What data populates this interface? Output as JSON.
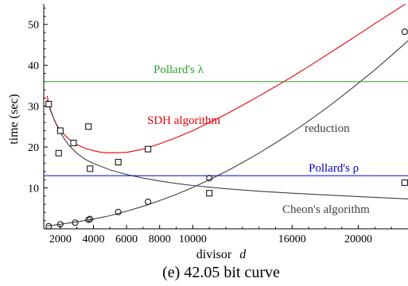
{
  "caption": "(e) 42.05 bit curve",
  "chart_data": {
    "type": "line",
    "xlabel": "divisor",
    "xlabel_var": "d",
    "ylabel": "time (sec)",
    "xlim": [
      1000,
      23000
    ],
    "ylim": [
      0,
      55
    ],
    "grid": false,
    "x_ticks": [
      2000,
      4000,
      6000,
      8000,
      10000,
      16000,
      20000
    ],
    "y_ticks": [
      10,
      20,
      30,
      40,
      50
    ],
    "series": [
      {
        "name": "SDH algorithm",
        "kind": "fitted-curve",
        "color": "#e8000b",
        "x": [
          1200,
          1400,
          1700,
          2000,
          2500,
          3000,
          3500,
          4000,
          4500,
          5000,
          5500,
          6000,
          7000,
          8000,
          9000,
          10000,
          11000,
          12000,
          13000,
          14000,
          15000,
          16000,
          17000,
          18000,
          19000,
          20000,
          21000,
          22000,
          23000
        ],
        "y": [
          32.5,
          29,
          26,
          24,
          22,
          20.6,
          19.7,
          19.1,
          18.7,
          18.6,
          18.6,
          18.7,
          19.5,
          20.8,
          22.3,
          24,
          26,
          28,
          30.2,
          32.5,
          34.8,
          37.2,
          39.7,
          42.3,
          44.9,
          47.5,
          50.2,
          52.8,
          55.4
        ]
      },
      {
        "name": "reduction",
        "kind": "fitted-curve",
        "color": "#404040",
        "x": [
          1200,
          2000,
          3000,
          4000,
          5000,
          6000,
          7000,
          8000,
          9000,
          10000,
          11000,
          12000,
          13000,
          14000,
          15000,
          16000,
          17000,
          18000,
          19000,
          20000,
          21000,
          22000,
          23000
        ],
        "y": [
          0.7,
          1.1,
          1.7,
          2.4,
          3.2,
          4.3,
          5.5,
          6.9,
          8.4,
          10.1,
          12,
          14,
          16.2,
          18.5,
          21,
          23.6,
          26.4,
          29.3,
          32.4,
          35.6,
          38.9,
          42.4,
          46
        ]
      },
      {
        "name": "Cheon's algorithm",
        "kind": "fitted-curve",
        "color": "#404040",
        "x": [
          1200,
          1600,
          2000,
          2500,
          3000,
          3500,
          4000,
          5000,
          6000,
          7000,
          8000,
          9000,
          10000,
          12000,
          14000,
          16000,
          18000,
          20000,
          22000,
          23000
        ],
        "y": [
          31.5,
          27,
          23.5,
          20.5,
          18.5,
          17,
          16,
          14.4,
          13.3,
          12.4,
          11.7,
          11.1,
          10.6,
          9.8,
          9.2,
          8.7,
          8.3,
          7.9,
          7.5,
          7.3
        ]
      },
      {
        "name": "Pollard's λ",
        "kind": "constant",
        "color": "#2ca02c",
        "y": 36
      },
      {
        "name": "Pollard's ρ",
        "kind": "constant",
        "color": "#0000cc",
        "y": 13
      },
      {
        "name": "",
        "kind": "measured-squares",
        "x": [
          1300,
          1900,
          2000,
          2800,
          3700,
          3800,
          5500,
          7300,
          11000,
          22800
        ],
        "y": [
          30.5,
          18.5,
          24,
          21,
          25,
          14.7,
          16.3,
          19.5,
          8.7,
          11.3
        ]
      },
      {
        "name": "",
        "kind": "measured-circles",
        "x": [
          1300,
          2000,
          2900,
          3700,
          3800,
          5500,
          7300,
          11000,
          22800
        ],
        "y": [
          0.6,
          1.1,
          1.5,
          2.2,
          2.4,
          4.1,
          6.6,
          12.4,
          48.2
        ]
      }
    ]
  }
}
